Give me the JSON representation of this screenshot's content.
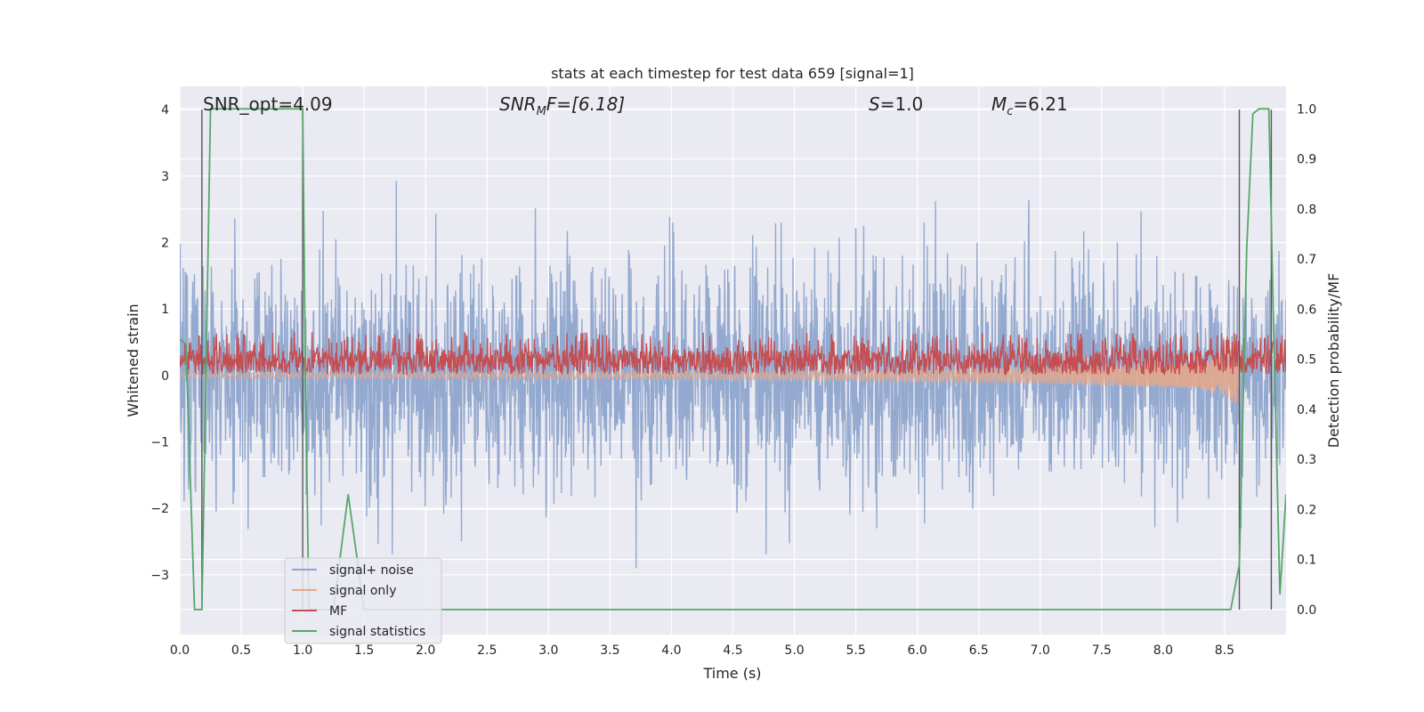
{
  "chart_data": {
    "type": "line",
    "title": "stats at each timestep for test data 659 [signal=1]",
    "xlabel": "Time (s)",
    "ylabel_left": "Whitened strain",
    "ylabel_right": "Detection probability/MF",
    "xlim": [
      0.0,
      9.0
    ],
    "ylim_left": [
      -3.9,
      4.35
    ],
    "ylim_right": [
      -0.05,
      1.045
    ],
    "x_ticks": [
      "0.0",
      "0.5",
      "1.0",
      "1.5",
      "2.0",
      "2.5",
      "3.0",
      "3.5",
      "4.0",
      "4.5",
      "5.0",
      "5.5",
      "6.0",
      "6.5",
      "7.0",
      "7.5",
      "8.0",
      "8.5"
    ],
    "x_tick_values": [
      0,
      0.5,
      1,
      1.5,
      2,
      2.5,
      3,
      3.5,
      4,
      4.5,
      5,
      5.5,
      6,
      6.5,
      7,
      7.5,
      8,
      8.5
    ],
    "y_left_ticks": [
      "4",
      "3",
      "2",
      "1",
      "0",
      "−1",
      "−2",
      "−3"
    ],
    "y_left_tick_values": [
      4,
      3,
      2,
      1,
      0,
      -1,
      -2,
      -3
    ],
    "y_right_ticks": [
      "1.0",
      "0.9",
      "0.8",
      "0.7",
      "0.6",
      "0.5",
      "0.4",
      "0.3",
      "0.2",
      "0.1",
      "0.0"
    ],
    "y_right_tick_values": [
      1.0,
      0.9,
      0.8,
      0.7,
      0.6,
      0.5,
      0.4,
      0.3,
      0.2,
      0.1,
      0.0
    ],
    "grid": true,
    "legend_position": "lower-left",
    "annotations": {
      "snr_opt": "SNR_opt=4.09",
      "snr_mf_prefix": "SNR",
      "snr_mf_sub": "M",
      "snr_mf_suffix": "F=[6.18]",
      "s_prefix": "S",
      "s_suffix": "=1.0",
      "mc_prefix": "M",
      "mc_sub": "c",
      "mc_suffix": "=6.21"
    },
    "vertical_markers_s": [
      0.18,
      1.0,
      8.62,
      8.88
    ],
    "series": [
      {
        "name": "signal+ noise",
        "color": "#8fa5cc",
        "axis": "left",
        "style": "noise",
        "t_range": [
          0.0,
          9.0
        ],
        "sigma": 1.0,
        "typical_extent": [
          -2.9,
          3.4
        ]
      },
      {
        "name": "signal only",
        "color": "#e2a98c",
        "axis": "left",
        "style": "chirp",
        "t_range": [
          0.0,
          8.62
        ],
        "x": [
          0.0,
          2.0,
          4.0,
          5.0,
          6.0,
          7.0,
          7.5,
          8.0,
          8.3,
          8.5,
          8.62
        ],
        "envelope": [
          0.04,
          0.05,
          0.06,
          0.07,
          0.09,
          0.12,
          0.15,
          0.18,
          0.22,
          0.3,
          0.55
        ]
      },
      {
        "name": "MF",
        "color": "#c44e52",
        "axis": "left",
        "style": "band",
        "t_range": [
          0.0,
          9.0
        ],
        "center": 0.2,
        "half_width": 0.25
      },
      {
        "name": "signal statistics",
        "color": "#55a868",
        "axis": "right",
        "style": "line",
        "x": [
          0.0,
          0.05,
          0.12,
          0.18,
          0.25,
          0.45,
          1.0,
          1.02,
          1.05,
          1.25,
          1.37,
          1.5,
          2.0,
          4.0,
          6.0,
          8.0,
          8.55,
          8.62,
          8.68,
          8.73,
          8.78,
          8.86,
          8.9,
          8.95,
          9.0
        ],
        "y": [
          0.54,
          0.53,
          0.0,
          0.0,
          1.0,
          1.0,
          1.0,
          0.52,
          0.0,
          0.0,
          0.23,
          0.0,
          0.0,
          0.0,
          0.0,
          0.0,
          0.0,
          0.09,
          0.72,
          0.99,
          1.0,
          1.0,
          0.55,
          0.03,
          0.23
        ]
      }
    ]
  }
}
